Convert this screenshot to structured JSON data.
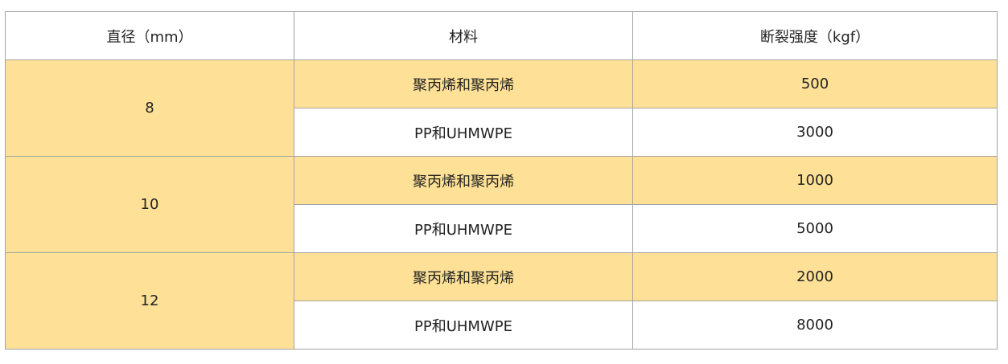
{
  "headers": [
    "直径（mm）",
    "材料",
    "断裂强度（kgf）"
  ],
  "highlight_color": "#fee196",
  "groups": [
    {
      "diameter": "8",
      "rows": [
        {
          "material": "聚丙烯和聚丙烯",
          "strength": "500"
        },
        {
          "material": "PP和UHMWPE",
          "strength": "3000"
        }
      ]
    },
    {
      "diameter": "10",
      "rows": [
        {
          "material": "聚丙烯和聚丙烯",
          "strength": "1000"
        },
        {
          "material": "PP和UHMWPE",
          "strength": "5000"
        }
      ]
    },
    {
      "diameter": "12",
      "rows": [
        {
          "material": "聚丙烯和聚丙烯",
          "strength": "2000"
        },
        {
          "material": "PP和UHMWPE",
          "strength": "8000"
        }
      ]
    }
  ]
}
